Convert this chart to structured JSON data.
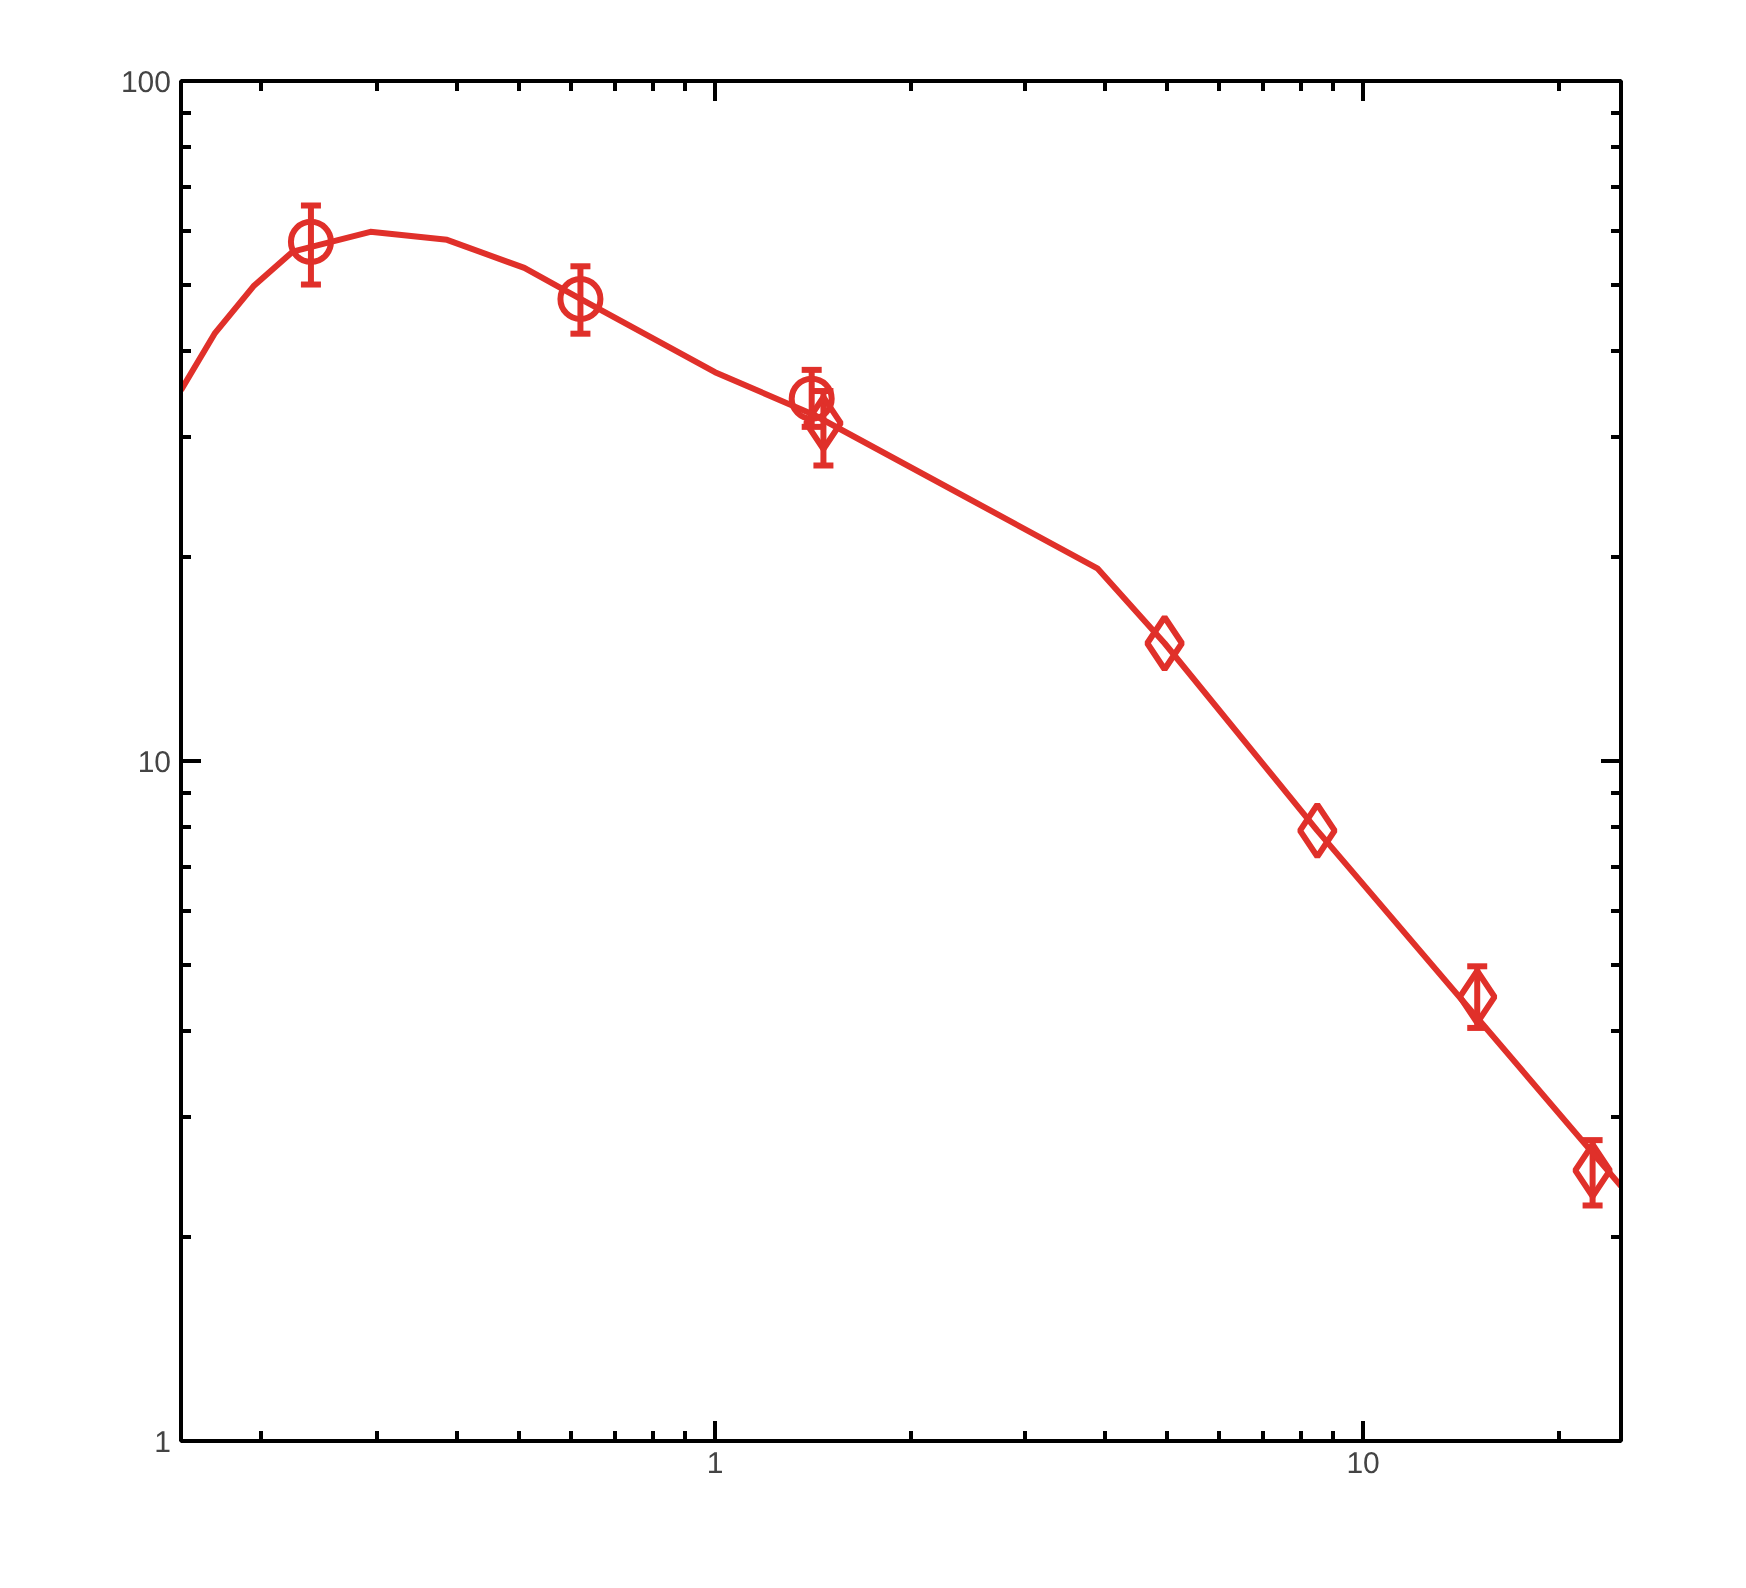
{
  "chart_data": {
    "type": "scatter",
    "log": "xy",
    "xlim": [
      0.15,
      25
    ],
    "ylim": [
      1,
      100
    ],
    "xticks": [
      1,
      10
    ],
    "yticks": [
      1,
      10,
      100
    ],
    "grid": false,
    "series": [
      {
        "marker": "circle",
        "color": "#e0302a",
        "x": [
          0.238,
          0.62,
          1.41
        ],
        "values": [
          58,
          47.8,
          34.1
        ],
        "errors": [
          [
            50.2,
            65.6
          ],
          [
            42.5,
            53.4
          ],
          [
            31,
            37.6
          ]
        ]
      },
      {
        "marker": "diamond",
        "color": "#e0302a",
        "x": [
          1.47,
          4.94,
          8.5,
          15.0,
          22.6
        ],
        "values": [
          31.4,
          14.9,
          7.9,
          4.5,
          2.5
        ],
        "errors": [
          [
            27.2,
            35
          ],
          null,
          null,
          [
            4.05,
            4.99
          ],
          [
            2.22,
            2.77
          ]
        ]
      },
      {
        "type": "line",
        "marker": "none",
        "line_style": "solid",
        "color": "#e0302a",
        "x": [
          0.15,
          0.169,
          0.194,
          0.223,
          0.294,
          0.386,
          0.508,
          0.62,
          1.0,
          1.42,
          3.89,
          4.94,
          8.5,
          25
        ],
        "values": [
          35.1,
          42.5,
          49.9,
          56.1,
          60,
          58.4,
          53.1,
          47.8,
          37.3,
          32.3,
          19.2,
          14.9,
          7.9,
          2.37
        ]
      }
    ]
  }
}
